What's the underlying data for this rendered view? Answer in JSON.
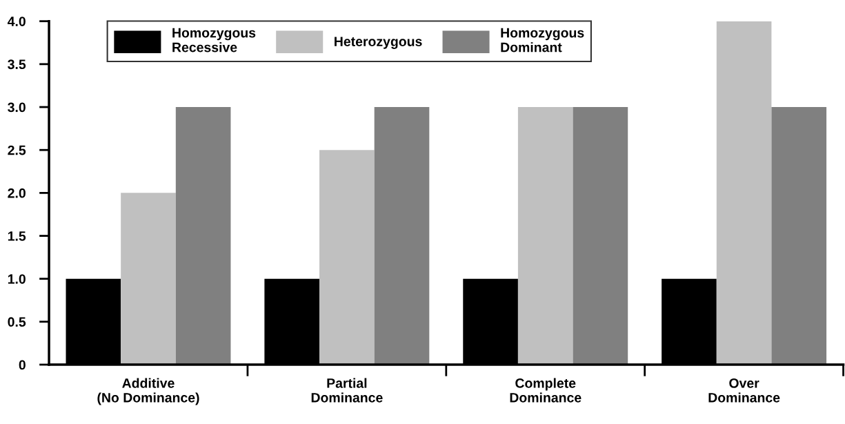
{
  "chart_data": {
    "type": "bar",
    "categories": [
      "Additive\n(No Dominance)",
      "Partial\nDominance",
      "Complete\nDominance",
      "Over\nDominance"
    ],
    "series": [
      {
        "name": "Homozygous\nRecessive",
        "color": "#000000",
        "values": [
          1,
          1,
          1,
          1
        ]
      },
      {
        "name": "Heterozygous",
        "color": "#c0c0c0",
        "values": [
          2,
          2.5,
          3,
          4
        ]
      },
      {
        "name": "Homozygous\nDominant",
        "color": "#808080",
        "values": [
          3,
          3,
          3,
          3
        ]
      }
    ],
    "ylim": [
      0,
      4
    ],
    "yticks": [
      0,
      0.5,
      {
        "value": 1,
        "label": "1.0"
      },
      1.5,
      {
        "value": 2,
        "label": "2.0"
      },
      2.5,
      {
        "value": 3,
        "label": "3.0"
      },
      3.5,
      {
        "value": 4,
        "label": "4.0"
      }
    ],
    "grid": false,
    "legend": "top left"
  }
}
